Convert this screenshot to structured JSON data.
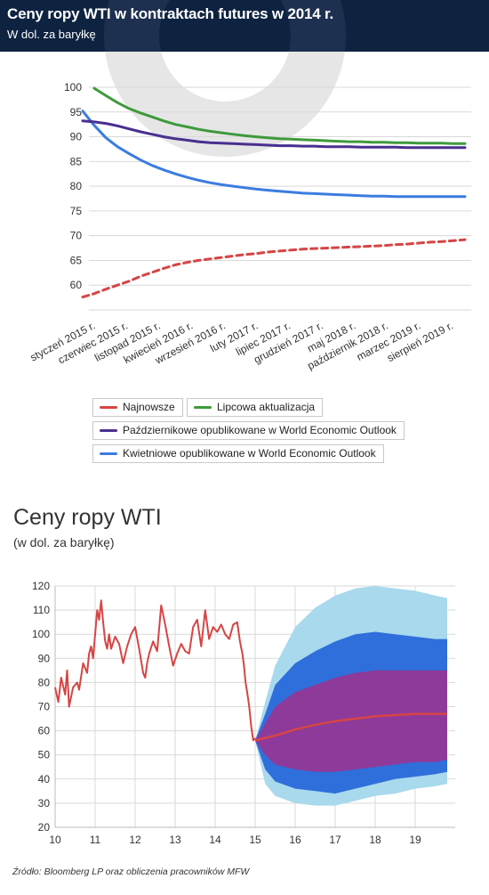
{
  "header": {
    "title": "Ceny ropy WTI w kontraktach futures w 2014 r.",
    "subtitle": "W dol. za baryłkę"
  },
  "chart2_header": {
    "title": "Ceny ropy WTI",
    "subtitle": "(w dol. za baryłkę)"
  },
  "source": "Źródło: Bloomberg LP oraz obliczenia pracowników MFW",
  "colors": {
    "header_bg": "#0e2340",
    "najnowsze": "#d64545",
    "lipcowa": "#3f9a3c",
    "pazdziernikowe": "#4a2f8f",
    "kwietniowe": "#3b7de0",
    "fan_outer": "#a9d9ec",
    "fan_mid": "#2f6fdb",
    "fan_inner": "#8e3a9a"
  },
  "chart_data": [
    {
      "type": "line",
      "title": "Ceny ropy WTI w kontraktach futures w 2014 r.",
      "ylabel": "W dol. za baryłkę",
      "ylim": [
        55,
        100
      ],
      "yticks": [
        55,
        60,
        65,
        70,
        75,
        80,
        85,
        90,
        95,
        100
      ],
      "ytick_labels": [
        "",
        "60",
        "65",
        "70",
        "75",
        "80",
        "85",
        "90",
        "95",
        "100"
      ],
      "x_tick_labels": [
        "styczeń 2015 r.",
        "czerwiec 2015 r.",
        "listopad 2015 r.",
        "kwiecień 2016 r.",
        "wrzesień 2016 r.",
        "luty 2017 r.",
        "lipiec 2017 r.",
        "grudzień 2017 r.",
        "maj 2018 r.",
        "październik 2018 r.",
        "marzec 2019 r.",
        "sierpień 2019 r."
      ],
      "grid": true,
      "legend_position": "bottom",
      "series": [
        {
          "name": "Najnowsze",
          "style": "dashed",
          "values": [
            57.6,
            58.3,
            59.2,
            60.0,
            60.8,
            61.8,
            62.6,
            63.4,
            64.1,
            64.6,
            65.0,
            65.3,
            65.6,
            65.9,
            66.2,
            66.4,
            66.7,
            66.9,
            67.1,
            67.3,
            67.4,
            67.5,
            67.6,
            67.7,
            67.8,
            67.9,
            68.0,
            68.2,
            68.3,
            68.5,
            68.7,
            68.8,
            69.0,
            69.2
          ]
        },
        {
          "name": "Lipcowa aktualizacja",
          "style": "solid",
          "start_index": 1,
          "values": [
            99.8,
            98.3,
            96.9,
            95.7,
            94.8,
            94.0,
            93.2,
            92.5,
            92.0,
            91.5,
            91.1,
            90.8,
            90.5,
            90.2,
            90.0,
            89.8,
            89.6,
            89.5,
            89.4,
            89.3,
            89.2,
            89.1,
            89.0,
            89.0,
            88.9,
            88.9,
            88.8,
            88.8,
            88.7,
            88.7,
            88.7,
            88.6,
            88.6
          ]
        },
        {
          "name": "Październikowe opublikowane w World Economic Outlook",
          "style": "solid",
          "values": [
            93.2,
            93.0,
            92.7,
            92.2,
            91.6,
            91.0,
            90.5,
            90.0,
            89.6,
            89.3,
            89.0,
            88.8,
            88.7,
            88.6,
            88.5,
            88.4,
            88.3,
            88.2,
            88.2,
            88.1,
            88.1,
            88.0,
            88.0,
            88.0,
            87.9,
            87.9,
            87.9,
            87.9,
            87.8,
            87.8,
            87.8,
            87.8,
            87.8,
            87.8
          ]
        },
        {
          "name": "Kwietniowe opublikowane w World Economic Outlook",
          "style": "solid",
          "values": [
            95.2,
            92.3,
            89.8,
            88.0,
            86.6,
            85.3,
            84.2,
            83.3,
            82.5,
            81.8,
            81.2,
            80.7,
            80.3,
            80.0,
            79.7,
            79.4,
            79.2,
            79.0,
            78.8,
            78.6,
            78.5,
            78.4,
            78.3,
            78.2,
            78.1,
            78.0,
            78.0,
            77.9,
            77.9,
            77.9,
            77.9,
            77.9,
            77.9,
            77.9
          ]
        }
      ]
    },
    {
      "type": "area",
      "title": "Ceny ropy WTI",
      "subtitle": "(w dol. za baryłkę)",
      "xlim": [
        10,
        20
      ],
      "ylim": [
        20,
        120
      ],
      "x_ticks": [
        10,
        11,
        12,
        13,
        14,
        15,
        16,
        17,
        18,
        19
      ],
      "y_ticks": [
        20,
        30,
        40,
        50,
        60,
        70,
        80,
        90,
        100,
        110,
        120
      ],
      "grid": true,
      "historical": {
        "x": [
          10.0,
          10.08,
          10.15,
          10.25,
          10.3,
          10.35,
          10.45,
          10.55,
          10.6,
          10.7,
          10.8,
          10.85,
          10.9,
          10.95,
          11.0,
          11.05,
          11.1,
          11.15,
          11.2,
          11.25,
          11.3,
          11.35,
          11.4,
          11.5,
          11.6,
          11.7,
          11.8,
          11.9,
          12.0,
          12.1,
          12.2,
          12.25,
          12.3,
          12.35,
          12.45,
          12.55,
          12.65,
          12.75,
          12.85,
          12.95,
          13.05,
          13.15,
          13.25,
          13.35,
          13.45,
          13.55,
          13.65,
          13.75,
          13.85,
          13.95,
          14.05,
          14.15,
          14.25,
          14.35,
          14.45,
          14.55,
          14.62,
          14.68,
          14.72,
          14.76,
          14.8,
          14.85,
          14.9,
          14.95,
          15.0
        ],
        "values": [
          78,
          72,
          82,
          75,
          85,
          70,
          78,
          80,
          77,
          88,
          84,
          92,
          95,
          90,
          100,
          110,
          106,
          114,
          105,
          97,
          94,
          100,
          94,
          99,
          96,
          88,
          95,
          100,
          103,
          94,
          84,
          82,
          88,
          92,
          97,
          93,
          112,
          104,
          95,
          87,
          92,
          96,
          93,
          92,
          103,
          106,
          95,
          110,
          98,
          103,
          101,
          104,
          100,
          98,
          104,
          105,
          97,
          92,
          87,
          80,
          76,
          70,
          62,
          56,
          57
        ]
      },
      "forecast_median": {
        "x": [
          15.0,
          15.5,
          16.0,
          16.5,
          17.0,
          17.5,
          18.0,
          18.5,
          19.0,
          19.5,
          19.8
        ],
        "values": [
          56,
          58,
          60.5,
          62.5,
          64,
          65,
          66,
          66.5,
          67,
          67,
          67
        ]
      },
      "bands": {
        "x": [
          15.0,
          15.25,
          15.5,
          16.0,
          16.5,
          17.0,
          17.5,
          18.0,
          18.5,
          19.0,
          19.5,
          19.8
        ],
        "outer_upper": [
          56,
          72,
          87,
          103,
          111,
          116,
          119,
          120,
          119,
          118,
          116,
          115
        ],
        "mid_upper": [
          56,
          67,
          79,
          88,
          93,
          97,
          100,
          101,
          100,
          99,
          98,
          98
        ],
        "inner_upper": [
          56,
          63,
          70,
          76,
          79,
          82,
          84,
          85,
          85,
          85,
          85,
          85
        ],
        "inner_lower": [
          56,
          50,
          46,
          44,
          43,
          43,
          44,
          45,
          46,
          47,
          47,
          48
        ],
        "mid_lower": [
          56,
          44,
          39,
          36,
          35,
          34,
          36,
          38,
          40,
          41,
          42,
          43
        ],
        "outer_lower": [
          56,
          38,
          33,
          30,
          29,
          29,
          31,
          33,
          34,
          36,
          37,
          38
        ]
      }
    }
  ]
}
